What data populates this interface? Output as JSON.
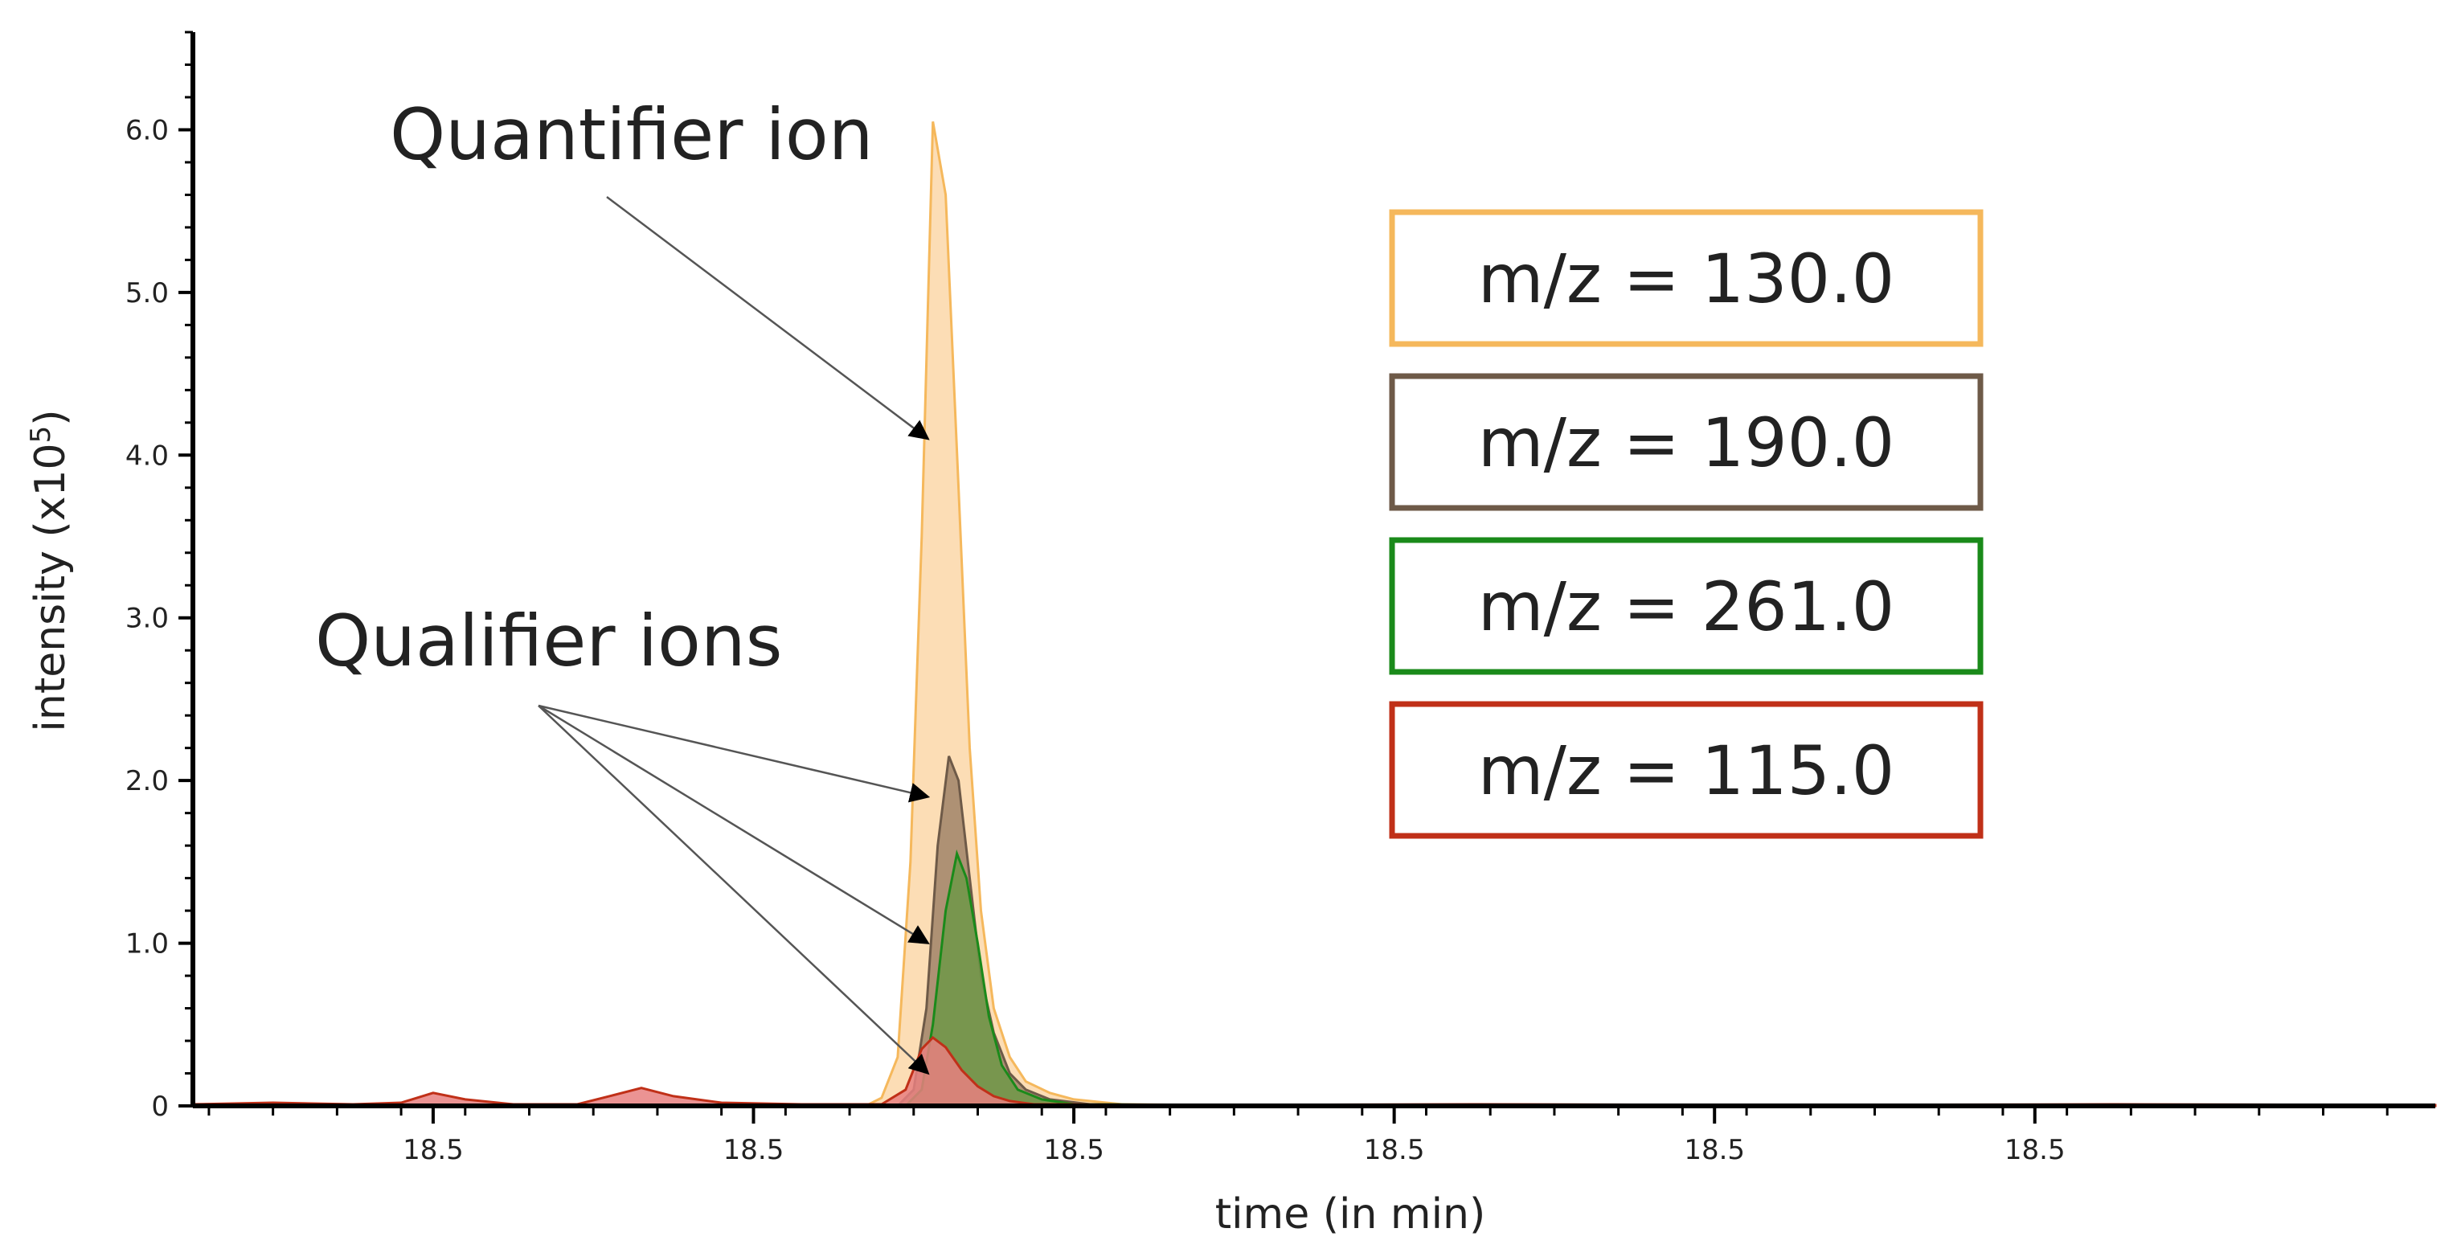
{
  "chart_data": {
    "type": "area",
    "title": "",
    "xlabel": "time (in min)",
    "ylabel_main": "intensity (x10",
    "ylabel_sup": "5",
    "ylabel_close": ")",
    "ylim": [
      0,
      6.6
    ],
    "xlim": [
      0,
      1400
    ],
    "grid": false,
    "legend_placement": "right",
    "yticks": [
      {
        "value": 0,
        "label": "0"
      },
      {
        "value": 1.0,
        "label": "1.0"
      },
      {
        "value": 2.0,
        "label": "2.0"
      },
      {
        "value": 3.0,
        "label": "3.0"
      },
      {
        "value": 4.0,
        "label": "4.0"
      },
      {
        "value": 5.0,
        "label": "5.0"
      },
      {
        "value": 6.0,
        "label": "6.0"
      }
    ],
    "xticks": [
      {
        "value": 150,
        "label": "18.5"
      },
      {
        "value": 350,
        "label": "18.5"
      },
      {
        "value": 550,
        "label": "18.5"
      },
      {
        "value": 750,
        "label": "18.5"
      },
      {
        "value": 950,
        "label": "18.5"
      },
      {
        "value": 1150,
        "label": "18.5"
      }
    ],
    "series": [
      {
        "name": "m/z = 130.0",
        "color": "#f5b85c",
        "fill": "#fcd7a8",
        "x": [
          0,
          420,
          430,
          440,
          448,
          455,
          462,
          470,
          478,
          485,
          492,
          500,
          510,
          520,
          535,
          550,
          580,
          700,
          1400
        ],
        "y": [
          0,
          0,
          0.05,
          0.3,
          1.5,
          3.5,
          6.05,
          5.6,
          3.8,
          2.2,
          1.2,
          0.6,
          0.3,
          0.15,
          0.08,
          0.04,
          0.01,
          0,
          0
        ]
      },
      {
        "name": "m/z = 190.0",
        "color": "#6e5a48",
        "fill": "#a08468",
        "x": [
          0,
          440,
          450,
          458,
          465,
          472,
          478,
          485,
          492,
          500,
          510,
          520,
          535,
          560,
          700,
          1400
        ],
        "y": [
          0,
          0,
          0.1,
          0.6,
          1.6,
          2.15,
          2.0,
          1.4,
          0.8,
          0.45,
          0.2,
          0.1,
          0.04,
          0.01,
          0,
          0
        ]
      },
      {
        "name": "m/z = 261.0",
        "color": "#1a8a1a",
        "fill": "#6f9648",
        "x": [
          0,
          445,
          455,
          462,
          470,
          477,
          483,
          490,
          497,
          505,
          515,
          530,
          550,
          700,
          1400
        ],
        "y": [
          0,
          0,
          0.1,
          0.5,
          1.2,
          1.55,
          1.4,
          1.0,
          0.55,
          0.25,
          0.1,
          0.04,
          0.01,
          0,
          0
        ]
      },
      {
        "name": "m/z = 115.0",
        "color": "#c03018",
        "fill": "#e88080",
        "x": [
          0,
          50,
          100,
          130,
          150,
          170,
          200,
          240,
          260,
          280,
          300,
          330,
          380,
          430,
          445,
          455,
          462,
          470,
          480,
          490,
          500,
          510,
          525,
          545,
          600,
          800,
          1000,
          1200,
          1400
        ],
        "y": [
          0.01,
          0.02,
          0.01,
          0.02,
          0.08,
          0.04,
          0.01,
          0.01,
          0.06,
          0.11,
          0.06,
          0.02,
          0.01,
          0.01,
          0.1,
          0.35,
          0.42,
          0.36,
          0.22,
          0.12,
          0.06,
          0.03,
          0.01,
          0.01,
          0.005,
          0.01,
          0.005,
          0.01,
          0.005
        ]
      }
    ],
    "annotations": [
      {
        "text": "Quantifier ion",
        "targets": [
          {
            "x": 462,
            "y": 4.1
          }
        ]
      },
      {
        "text": "Qualifier ions",
        "targets": [
          {
            "x": 462,
            "y": 1.9
          },
          {
            "x": 462,
            "y": 1.0
          },
          {
            "x": 462,
            "y": 0.2
          }
        ]
      }
    ]
  }
}
